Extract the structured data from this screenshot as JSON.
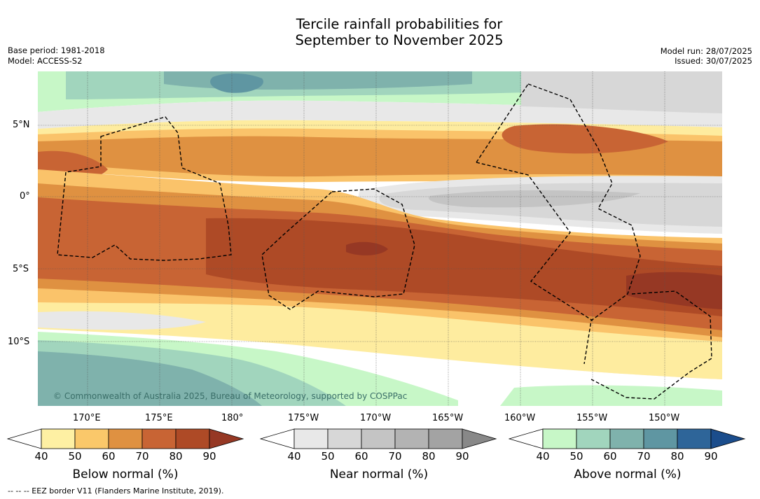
{
  "title": {
    "line1": "Tercile rainfall probabilities for",
    "line2": "September to November 2025"
  },
  "meta_left": {
    "base_period": "Base period: 1981-2018",
    "model": "Model: ACCESS-S2"
  },
  "meta_right": {
    "model_run": "Model run: 28/07/2025",
    "issued": "Issued: 30/07/2025"
  },
  "map": {
    "lat_labels": [
      "5°N",
      "0°",
      "5°S",
      "10°S"
    ],
    "lon_labels": [
      "170°E",
      "175°E",
      "180°",
      "175°W",
      "170°W",
      "165°W",
      "160°W",
      "155°W",
      "150°W"
    ],
    "copyright": "© Commonwealth of Australia 2025, Bureau of Meteorology, supported by COSPPac",
    "colors": {
      "below_60": "#fac36a",
      "below_70": "#df9141",
      "below_80": "#c86434",
      "below_90": "#ae4a26",
      "below_max": "#963824",
      "near_40": "#e8e8e8",
      "near_50": "#d7d7d7",
      "near_60": "#c4c4c4",
      "above_40": "#c7f7c7",
      "above_50": "#a1d5bd",
      "above_60": "#7fb2ac",
      "above_70": "#5f96a2",
      "below_50": "#feec9f"
    }
  },
  "colorbars": [
    {
      "title": "Below normal (%)",
      "ticks": [
        "40",
        "50",
        "60",
        "70",
        "80",
        "90"
      ],
      "colors": [
        "#fef0a3",
        "#fac86a",
        "#df9141",
        "#c86434",
        "#ae4a26",
        "#963824"
      ]
    },
    {
      "title": "Near normal (%)",
      "ticks": [
        "40",
        "50",
        "60",
        "70",
        "80",
        "90"
      ],
      "colors": [
        "#e8e8e8",
        "#d7d7d7",
        "#c4c4c4",
        "#b3b3b3",
        "#a3a3a3",
        "#888888"
      ]
    },
    {
      "title": "Above normal (%)",
      "ticks": [
        "40",
        "50",
        "60",
        "70",
        "80",
        "90"
      ],
      "colors": [
        "#c7f7c7",
        "#a1d5bd",
        "#7fb2ac",
        "#5f96a2",
        "#2e6599",
        "#1b4d8c"
      ]
    }
  ],
  "footnote": "--  --  -- EEZ border V11 (Flanders Marine Institute, 2019)."
}
